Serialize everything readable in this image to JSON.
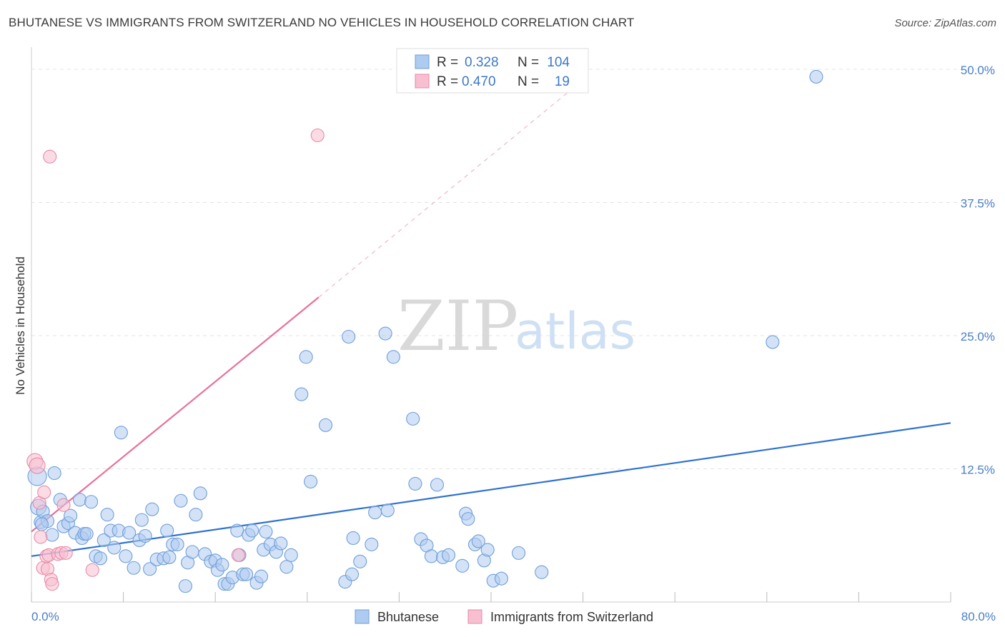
{
  "header": {
    "title": "BHUTANESE VS IMMIGRANTS FROM SWITZERLAND NO VEHICLES IN HOUSEHOLD CORRELATION CHART",
    "source": "Source: ZipAtlas.com"
  },
  "watermark": {
    "zip": "ZIP",
    "atlas": "atlas"
  },
  "legend": {
    "r_label": "R =",
    "n_label": "N =",
    "rows": [
      {
        "r": "0.328",
        "n": "104",
        "color": "#aecbf0",
        "stroke": "#6f9fd8"
      },
      {
        "r": "0.470",
        "n": "19",
        "color": "#f7bfd0",
        "stroke": "#e98aa8"
      }
    ]
  },
  "chart_data": {
    "type": "scatter",
    "title": "BHUTANESE VS IMMIGRANTS FROM SWITZERLAND NO VEHICLES IN HOUSEHOLD CORRELATION CHART",
    "xlabel": "",
    "ylabel": "No Vehicles in Household",
    "xlim": [
      0,
      80
    ],
    "ylim": [
      0,
      52
    ],
    "x_tick_labels": [
      "0.0%",
      "80.0%"
    ],
    "y_ticks": [
      12.5,
      25.0,
      37.5,
      50.0
    ],
    "y_tick_labels": [
      "12.5%",
      "25.0%",
      "37.5%",
      "50.0%"
    ],
    "grid": true,
    "legend_position": "top-center",
    "series": [
      {
        "name": "Bhutanese",
        "color": "#aecbf0",
        "stroke": "#6f9fd8",
        "trend": {
          "x": [
            0,
            80
          ],
          "y": [
            4.3,
            16.8
          ],
          "color": "#2f72d0"
        },
        "points": [
          [
            0.5,
            11.8
          ],
          [
            0.6,
            8.9
          ],
          [
            0.8,
            7.5
          ],
          [
            1.0,
            8.5
          ],
          [
            1.4,
            7.6
          ],
          [
            1.8,
            6.3
          ],
          [
            2.0,
            12.1
          ],
          [
            2.5,
            9.6
          ],
          [
            2.8,
            7.1
          ],
          [
            3.2,
            7.4
          ],
          [
            3.4,
            8.1
          ],
          [
            3.8,
            6.5
          ],
          [
            4.2,
            9.6
          ],
          [
            4.4,
            6.0
          ],
          [
            4.6,
            6.4
          ],
          [
            4.8,
            6.4
          ],
          [
            5.2,
            9.4
          ],
          [
            5.6,
            4.3
          ],
          [
            6.0,
            4.1
          ],
          [
            6.3,
            5.8
          ],
          [
            6.6,
            8.2
          ],
          [
            6.9,
            6.7
          ],
          [
            7.2,
            5.1
          ],
          [
            7.6,
            6.7
          ],
          [
            7.8,
            15.9
          ],
          [
            8.2,
            4.3
          ],
          [
            8.5,
            6.5
          ],
          [
            8.9,
            3.2
          ],
          [
            9.4,
            5.8
          ],
          [
            9.6,
            7.7
          ],
          [
            9.9,
            6.2
          ],
          [
            10.3,
            3.1
          ],
          [
            10.5,
            8.7
          ],
          [
            10.9,
            4.0
          ],
          [
            11.5,
            4.1
          ],
          [
            11.8,
            6.7
          ],
          [
            12.0,
            4.2
          ],
          [
            12.3,
            5.4
          ],
          [
            12.7,
            5.4
          ],
          [
            13.0,
            9.5
          ],
          [
            13.4,
            1.5
          ],
          [
            13.6,
            3.7
          ],
          [
            14.0,
            4.7
          ],
          [
            14.3,
            8.2
          ],
          [
            14.7,
            10.2
          ],
          [
            15.1,
            4.5
          ],
          [
            15.6,
            3.8
          ],
          [
            16.0,
            3.9
          ],
          [
            16.2,
            3.0
          ],
          [
            16.6,
            3.5
          ],
          [
            16.8,
            1.7
          ],
          [
            17.1,
            1.7
          ],
          [
            17.5,
            2.3
          ],
          [
            17.9,
            6.7
          ],
          [
            18.1,
            4.4
          ],
          [
            18.4,
            2.6
          ],
          [
            18.7,
            2.6
          ],
          [
            18.9,
            6.3
          ],
          [
            19.2,
            6.7
          ],
          [
            19.6,
            1.8
          ],
          [
            20.0,
            2.4
          ],
          [
            20.2,
            4.9
          ],
          [
            20.4,
            6.6
          ],
          [
            20.8,
            5.4
          ],
          [
            21.3,
            4.7
          ],
          [
            21.7,
            5.5
          ],
          [
            22.2,
            3.3
          ],
          [
            22.6,
            4.4
          ],
          [
            23.5,
            19.5
          ],
          [
            23.9,
            23.0
          ],
          [
            24.3,
            11.3
          ],
          [
            25.6,
            16.6
          ],
          [
            27.3,
            1.9
          ],
          [
            27.6,
            24.9
          ],
          [
            27.9,
            2.6
          ],
          [
            28.0,
            6.0
          ],
          [
            28.6,
            3.8
          ],
          [
            29.6,
            5.4
          ],
          [
            29.9,
            8.4
          ],
          [
            30.8,
            25.2
          ],
          [
            31.0,
            8.6
          ],
          [
            31.5,
            23.0
          ],
          [
            33.2,
            17.2
          ],
          [
            33.4,
            11.1
          ],
          [
            33.9,
            5.9
          ],
          [
            34.4,
            5.3
          ],
          [
            34.8,
            4.3
          ],
          [
            35.3,
            11.0
          ],
          [
            35.8,
            4.2
          ],
          [
            36.3,
            4.4
          ],
          [
            37.5,
            3.4
          ],
          [
            37.8,
            8.3
          ],
          [
            38.0,
            7.8
          ],
          [
            38.6,
            5.4
          ],
          [
            38.9,
            5.7
          ],
          [
            39.4,
            3.9
          ],
          [
            39.7,
            4.9
          ],
          [
            40.2,
            2.0
          ],
          [
            40.9,
            2.2
          ],
          [
            42.4,
            4.6
          ],
          [
            44.4,
            2.8
          ],
          [
            64.5,
            24.4
          ],
          [
            68.3,
            49.3
          ],
          [
            0.9,
            7.3
          ]
        ]
      },
      {
        "name": "Immigrants from Switzerland",
        "color": "#f7bfd0",
        "stroke": "#e98aa8",
        "trend": {
          "x": [
            0,
            25
          ],
          "y": [
            6.6,
            28.6
          ],
          "ext_x": [
            25,
            48
          ],
          "ext_y": [
            28.6,
            49.0
          ],
          "color": "#e8709a"
        },
        "points": [
          [
            0.3,
            13.2
          ],
          [
            0.5,
            12.8
          ],
          [
            0.7,
            9.3
          ],
          [
            0.8,
            6.1
          ],
          [
            1.0,
            3.2
          ],
          [
            1.1,
            10.3
          ],
          [
            1.3,
            4.3
          ],
          [
            1.4,
            3.1
          ],
          [
            1.5,
            4.4
          ],
          [
            1.6,
            41.8
          ],
          [
            1.7,
            2.1
          ],
          [
            1.8,
            1.7
          ],
          [
            2.3,
            4.5
          ],
          [
            2.6,
            4.6
          ],
          [
            2.8,
            9.1
          ],
          [
            3.0,
            4.6
          ],
          [
            5.3,
            3.0
          ],
          [
            18.0,
            4.4
          ],
          [
            24.9,
            43.8
          ]
        ]
      }
    ]
  },
  "bottom_legend": [
    {
      "label": "Bhutanese",
      "color": "#aecbf0",
      "stroke": "#6f9fd8"
    },
    {
      "label": "Immigrants from Switzerland",
      "color": "#f7bfd0",
      "stroke": "#e98aa8"
    }
  ]
}
